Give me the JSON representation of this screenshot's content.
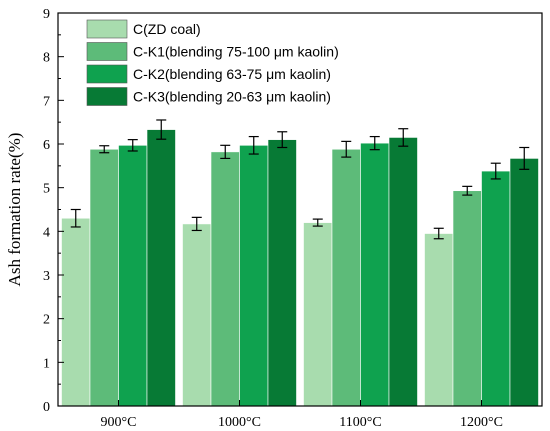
{
  "chart_data": {
    "type": "bar",
    "title": "",
    "xlabel": "",
    "ylabel": "Ash formation rate(%)",
    "ylim": [
      0,
      9
    ],
    "yticks": [
      "0",
      "1",
      "2",
      "3",
      "4",
      "5",
      "6",
      "7",
      "8",
      "9"
    ],
    "grid": false,
    "legend_position": "top-left",
    "categories": [
      "900°C",
      "1000°C",
      "1100°C",
      "1200°C"
    ],
    "series": [
      {
        "name": "C(ZD coal)",
        "color": "#a8dcae",
        "values": [
          4.3,
          4.17,
          4.2,
          3.95
        ],
        "errors": [
          0.2,
          0.15,
          0.08,
          0.12
        ]
      },
      {
        "name": "C-K1(blending 75-100 μm kaolin)",
        "color": "#5dbb79",
        "values": [
          5.88,
          5.82,
          5.88,
          4.93
        ],
        "errors": [
          0.08,
          0.15,
          0.18,
          0.1
        ]
      },
      {
        "name": "C-K2(blending 63-75 μm kaolin)",
        "color": "#0fa24f",
        "values": [
          5.97,
          5.97,
          6.02,
          5.38
        ],
        "errors": [
          0.13,
          0.2,
          0.15,
          0.18
        ]
      },
      {
        "name": "C-K3(blending 20-63 μm kaolin)",
        "color": "#077a35",
        "values": [
          6.33,
          6.1,
          6.15,
          5.67
        ],
        "errors": [
          0.22,
          0.18,
          0.2,
          0.25
        ]
      }
    ]
  }
}
